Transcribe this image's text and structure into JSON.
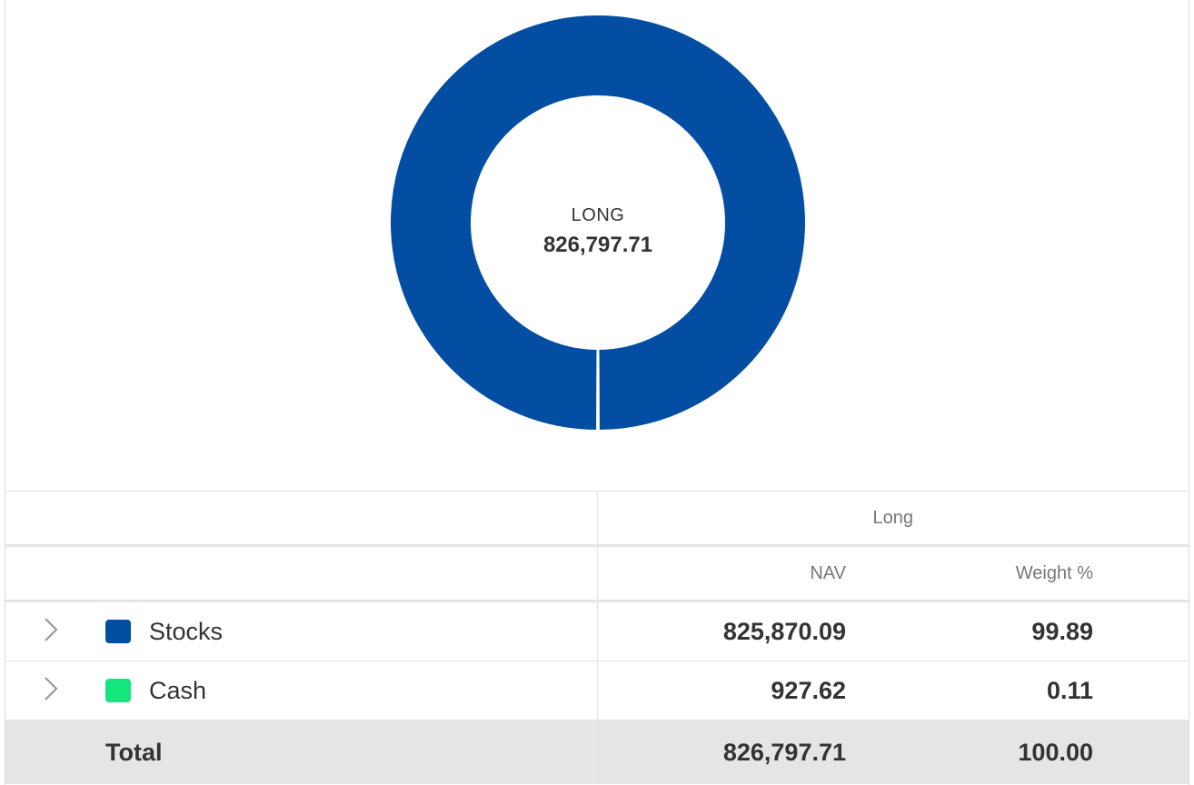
{
  "chart_data": {
    "type": "pie",
    "center_label": "LONG",
    "center_value": "826,797.71",
    "slices": [
      {
        "name": "Stocks",
        "value": 825870.09,
        "color": "#034ea2"
      },
      {
        "name": "Cash",
        "value": 927.62,
        "color": "#14e57c"
      }
    ]
  },
  "table": {
    "group_header": "Long",
    "columns": [
      "NAV",
      "Weight %"
    ],
    "rows": [
      {
        "name": "Stocks",
        "color": "#034ea2",
        "nav": "825,870.09",
        "weight": "99.89",
        "icon": "chevron-right-icon"
      },
      {
        "name": "Cash",
        "color": "#14e57c",
        "nav": "927.62",
        "weight": "0.11",
        "icon": "chevron-right-icon"
      }
    ],
    "total": {
      "label": "Total",
      "nav": "826,797.71",
      "weight": "100.00"
    }
  }
}
